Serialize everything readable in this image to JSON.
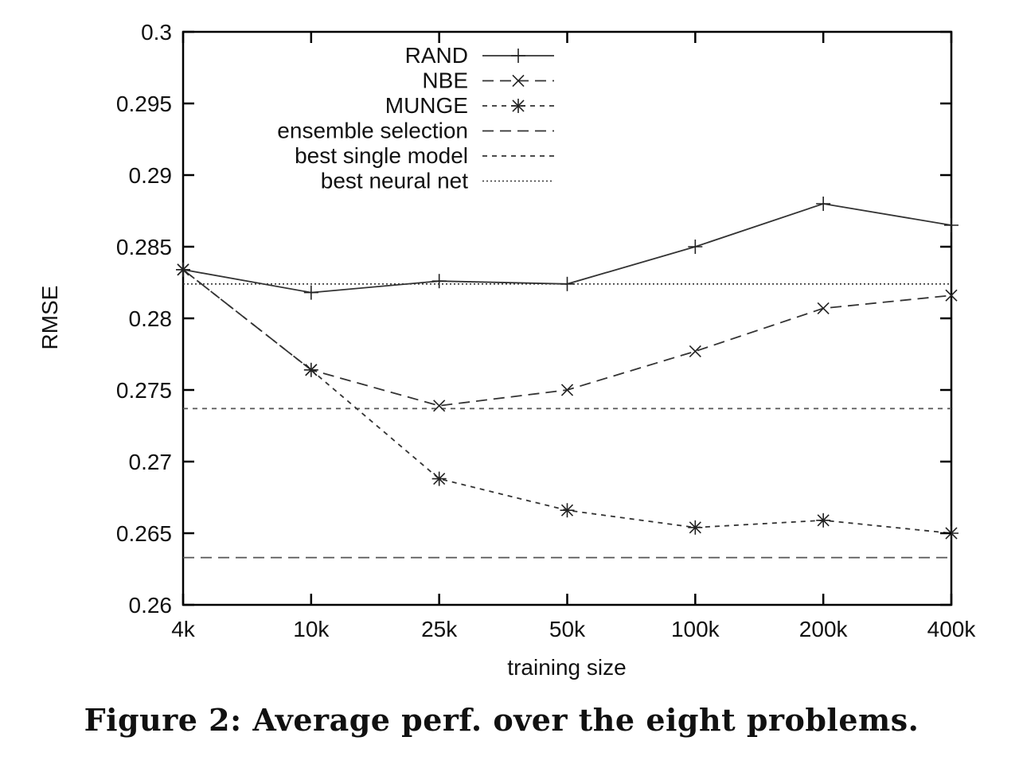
{
  "caption": "Figure 2: Average perf. over the eight problems.",
  "chart_data": {
    "type": "line",
    "title": "",
    "xlabel": "training size",
    "ylabel": "RMSE",
    "categories": [
      "4k",
      "10k",
      "25k",
      "50k",
      "100k",
      "200k",
      "400k"
    ],
    "ylim": [
      0.26,
      0.3
    ],
    "yticks": [
      "0.26",
      "0.265",
      "0.27",
      "0.275",
      "0.28",
      "0.285",
      "0.29",
      "0.295",
      "0.3"
    ],
    "grid": false,
    "legend_position": "top-center",
    "series": [
      {
        "name": "RAND",
        "values": [
          0.2834,
          0.2818,
          0.2826,
          0.2824,
          0.285,
          0.288,
          0.2865
        ],
        "marker": "plus",
        "dash": "solid"
      },
      {
        "name": "NBE",
        "values": [
          0.2834,
          0.2764,
          0.2739,
          0.275,
          0.2777,
          0.2807,
          0.2816
        ],
        "marker": "x",
        "dash": "long"
      },
      {
        "name": "MUNGE",
        "values": [
          0.2834,
          0.2764,
          0.2688,
          0.2666,
          0.2654,
          0.2659,
          0.265
        ],
        "marker": "star",
        "dash": "short"
      }
    ],
    "reference_lines": [
      {
        "name": "ensemble selection",
        "value": 0.2633,
        "dash": "long"
      },
      {
        "name": "best single model",
        "value": 0.2737,
        "dash": "short"
      },
      {
        "name": "best neural net",
        "value": 0.2824,
        "dash": "dot"
      }
    ]
  }
}
